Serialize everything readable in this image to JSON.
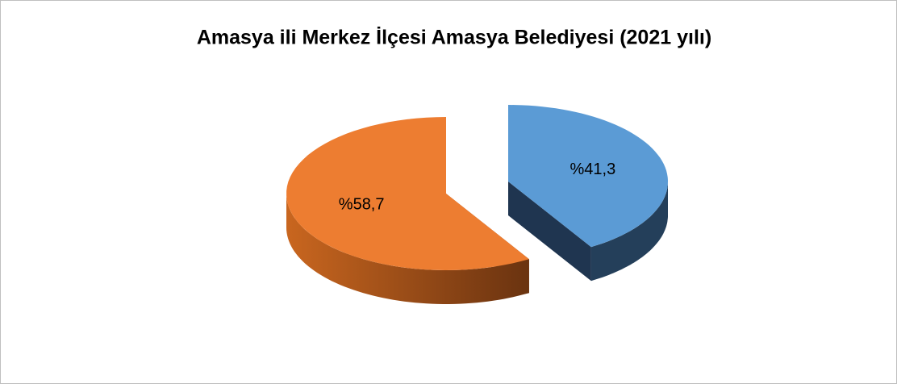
{
  "chart_data": {
    "type": "pie",
    "title": "Amasya ili Merkez İlçesi Amasya Belediyesi (2021 yılı)",
    "values": [
      41.3,
      58.7
    ],
    "value_labels": [
      "%41,3",
      "%58,7"
    ],
    "colors": [
      "#5b9bd5",
      "#ed7d31"
    ]
  }
}
